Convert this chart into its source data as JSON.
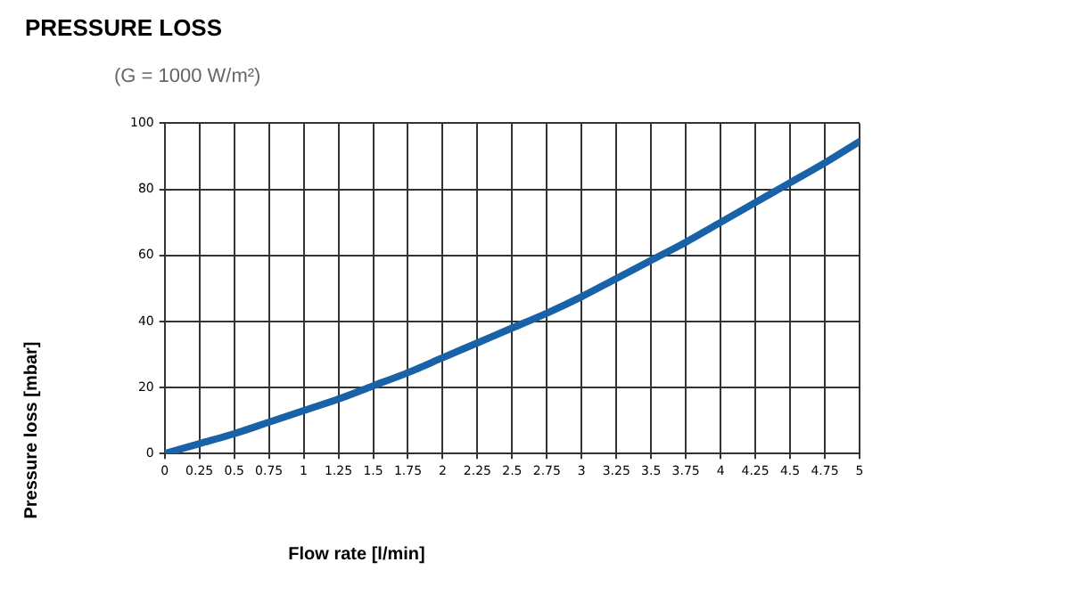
{
  "chart_data": {
    "type": "line",
    "title": "PRESSURE LOSS",
    "subtitle": "(G = 1000 W/m²)",
    "xlabel": "Flow  rate [l/min]",
    "ylabel": "Pressure loss  [mbar]",
    "x": [
      0,
      0.25,
      0.5,
      0.75,
      1,
      1.25,
      1.5,
      1.75,
      2,
      2.25,
      2.5,
      2.75,
      3,
      3.25,
      3.5,
      3.75,
      4,
      4.25,
      4.5,
      4.75,
      5
    ],
    "series": [
      {
        "color": "#1a62a8",
        "values": [
          0,
          3,
          6,
          9.5,
          13,
          16.5,
          20.5,
          24.5,
          29,
          33.5,
          38,
          42.5,
          47.5,
          53,
          58.5,
          64,
          70,
          76,
          82,
          88,
          94.5
        ]
      }
    ],
    "xlim": [
      0,
      5
    ],
    "xticks": [
      0,
      0.25,
      0.5,
      0.75,
      1,
      1.25,
      1.5,
      1.75,
      2,
      2.25,
      2.5,
      2.75,
      3,
      3.25,
      3.5,
      3.75,
      4,
      4.25,
      4.5,
      4.75,
      5
    ],
    "ylim": [
      0,
      100
    ],
    "yticks": [
      0,
      20,
      40,
      60,
      80,
      100
    ],
    "grid": true,
    "legend": false,
    "marker": "none",
    "line_style": "solid"
  }
}
